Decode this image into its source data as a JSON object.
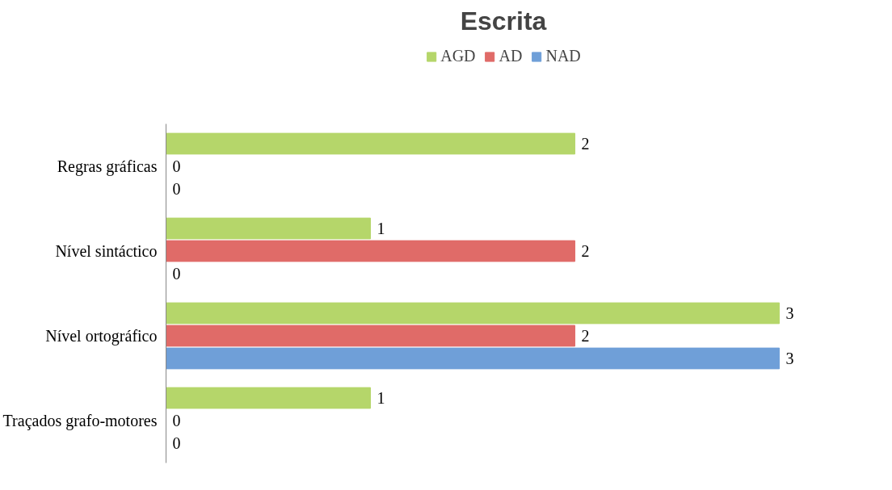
{
  "chart_data": {
    "type": "bar",
    "orientation": "horizontal",
    "title": "Escrita",
    "categories": [
      "Regras gráficas",
      "Nível sintáctico",
      "Nível ortográfico",
      "Traçados grafo-motores"
    ],
    "series": [
      {
        "name": "AGD",
        "color": "#b5d66a",
        "values": [
          2,
          1,
          3,
          1
        ]
      },
      {
        "name": "AD",
        "color": "#e06b68",
        "values": [
          0,
          2,
          2,
          0
        ]
      },
      {
        "name": "NAD",
        "color": "#6f9fd8",
        "values": [
          0,
          0,
          3,
          0
        ]
      }
    ],
    "data_labels": true,
    "legend": "top",
    "grid": false
  }
}
